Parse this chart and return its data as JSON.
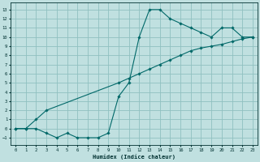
{
  "xlabel": "Humidex (Indice chaleur)",
  "ylabel": "",
  "bg_color": "#c0e0e0",
  "grid_color": "#90c0c0",
  "line_color": "#006868",
  "xlim": [
    -0.5,
    23.5
  ],
  "ylim": [
    -1.8,
    13.8
  ],
  "xticks": [
    0,
    1,
    2,
    3,
    4,
    5,
    6,
    7,
    8,
    9,
    10,
    11,
    12,
    13,
    14,
    15,
    16,
    17,
    18,
    19,
    20,
    21,
    22,
    23
  ],
  "yticks": [
    -1,
    0,
    1,
    2,
    3,
    4,
    5,
    6,
    7,
    8,
    9,
    10,
    11,
    12,
    13
  ],
  "line1_x": [
    0,
    1,
    2,
    3,
    4,
    5,
    6,
    7,
    8,
    9,
    10,
    11,
    12,
    13,
    14,
    15,
    16,
    17,
    18,
    19,
    20,
    21,
    22,
    23
  ],
  "line1_y": [
    0,
    0,
    0,
    -0.5,
    -1.0,
    -0.5,
    -1.0,
    -1.0,
    -1.0,
    -0.5,
    3.5,
    5.0,
    10.0,
    13.0,
    13.0,
    12.0,
    11.5,
    11.0,
    10.5,
    10.0,
    11.0,
    11.0,
    10.0,
    10.0
  ],
  "line2_x": [
    0,
    1,
    2,
    3,
    10,
    11,
    12,
    13,
    14,
    15,
    16,
    17,
    18,
    19,
    20,
    21,
    22,
    23
  ],
  "line2_y": [
    0,
    0,
    1.0,
    2.0,
    5.0,
    5.5,
    6.0,
    6.5,
    7.0,
    7.5,
    8.0,
    8.5,
    8.8,
    9.0,
    9.2,
    9.5,
    9.8,
    10.0
  ]
}
